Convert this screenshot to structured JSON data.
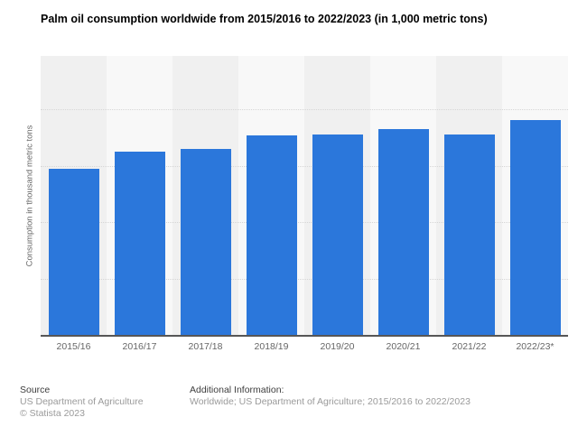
{
  "title": "Palm oil consumption worldwide from 2015/2016 to 2022/2023 (in 1,000 metric tons)",
  "chart_data": {
    "type": "bar",
    "title": "Palm oil consumption worldwide from 2015/2016 to 2022/2023 (in 1,000 metric tons)",
    "categories": [
      "2015/16",
      "2016/17",
      "2017/18",
      "2018/19",
      "2019/20",
      "2020/21",
      "2021/22",
      "2022/23*"
    ],
    "values": [
      59100,
      65000,
      65900,
      70900,
      71000,
      73100,
      71200,
      76100
    ],
    "xlabel": "",
    "ylabel": "Consumption in thousand metric tons",
    "ylim": [
      0,
      98800
    ],
    "gridline_values": [
      20000,
      40000,
      60000,
      80000
    ],
    "y_tick_labels_visible": false,
    "grid": "horizontal-dotted",
    "legend": "none",
    "bar_color": "#2b77db"
  },
  "colors": {
    "bar": "#2b77db",
    "stripe_dark": "#f0f0f0",
    "stripe_light": "#f8f8f8",
    "gridline": "#d6d6d6",
    "axis_line": "#565656",
    "tick_text": "#666666",
    "footer_dark": "#3d3d3d",
    "footer_muted": "#9a9a9a"
  },
  "footer": {
    "source_label": "Source",
    "source_lines": [
      "US Department of Agriculture",
      "© Statista 2023"
    ],
    "additional_label": "Additional Information:",
    "additional_text": "Worldwide; US Department of Agriculture; 2015/2016 to 2022/2023"
  }
}
